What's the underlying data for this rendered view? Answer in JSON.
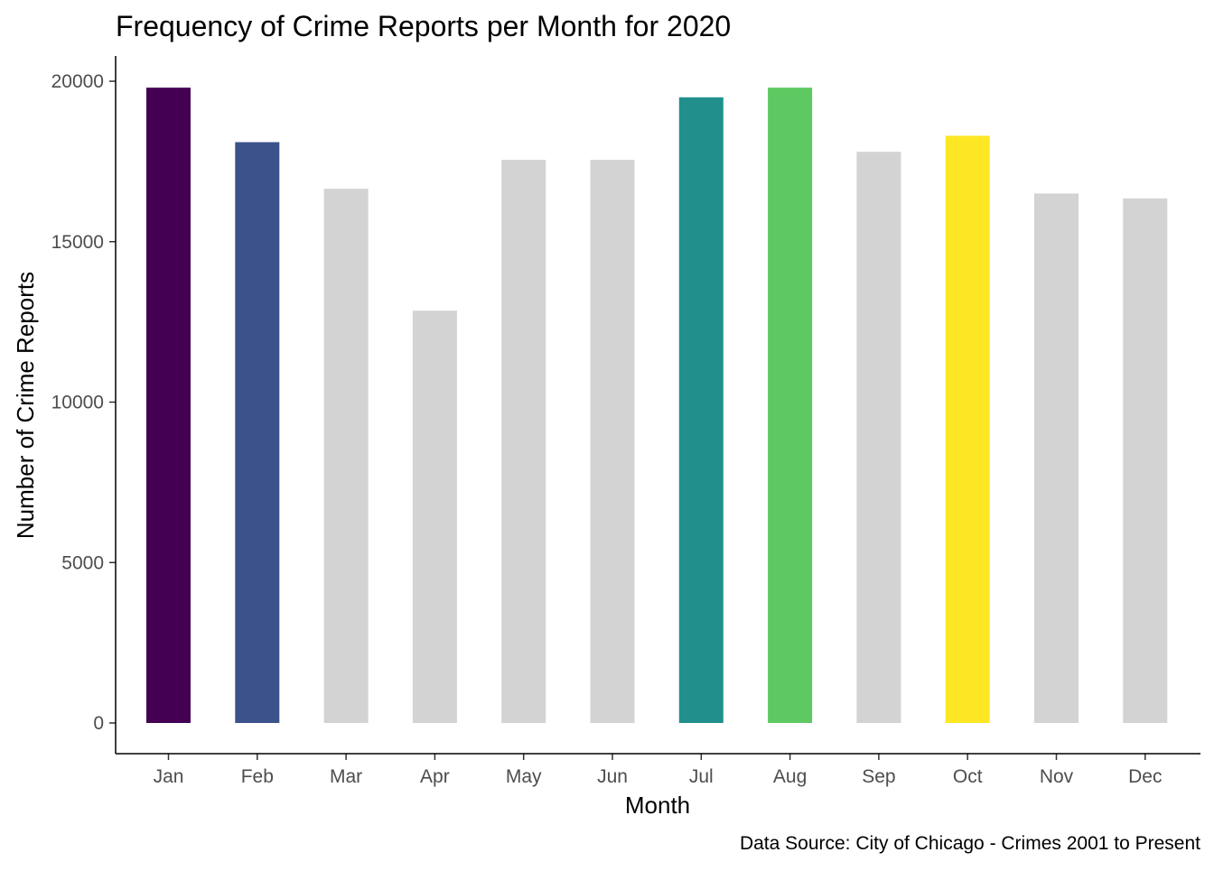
{
  "chart_data": {
    "type": "bar",
    "title": "Frequency of Crime Reports per Month for 2020",
    "xlabel": "Month",
    "ylabel": "Number of Crime Reports",
    "caption": "Data Source: City of Chicago - Crimes 2001 to Present",
    "categories": [
      "Jan",
      "Feb",
      "Mar",
      "Apr",
      "May",
      "Jun",
      "Jul",
      "Aug",
      "Sep",
      "Oct",
      "Nov",
      "Dec"
    ],
    "values": [
      19800,
      18100,
      16650,
      12850,
      17550,
      17550,
      19500,
      19800,
      17800,
      18300,
      16500,
      16350
    ],
    "colors": [
      "#440154",
      "#3b528b",
      "#d3d3d3",
      "#d3d3d3",
      "#d3d3d3",
      "#d3d3d3",
      "#21908c",
      "#5ec962",
      "#d3d3d3",
      "#fde725",
      "#d3d3d3",
      "#d3d3d3"
    ],
    "ylim": [
      0,
      20000
    ],
    "yticks": [
      "0",
      "5000",
      "10000",
      "15000",
      "20000"
    ],
    "grid": false,
    "legend": "none"
  }
}
